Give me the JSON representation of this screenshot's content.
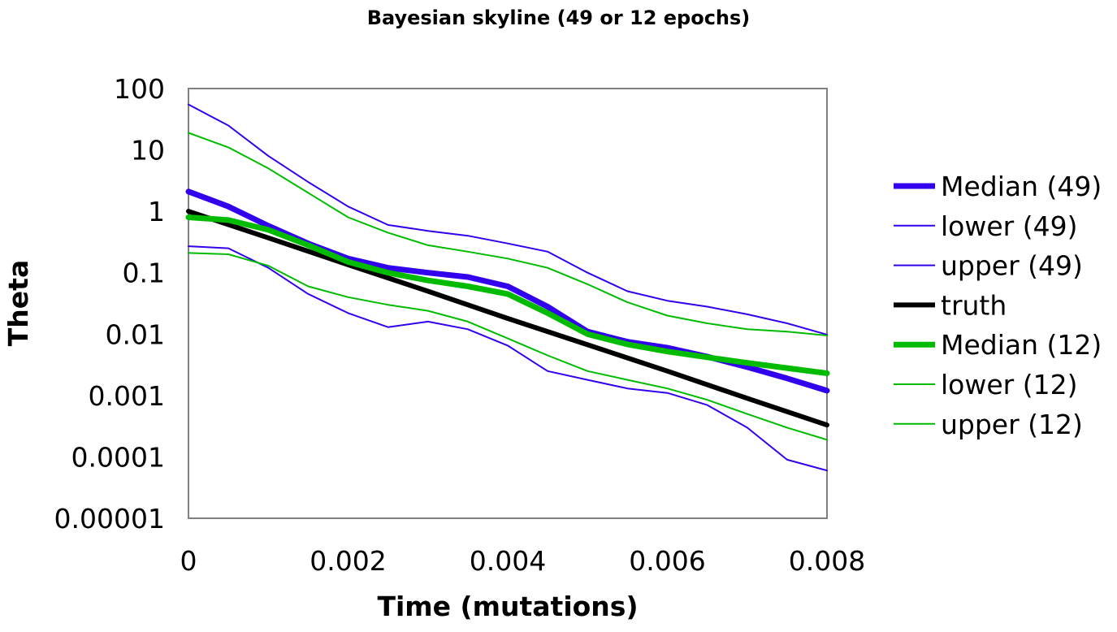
{
  "chart_data": {
    "type": "line",
    "title": "Bayesian skyline (49 or 12 epochs)",
    "xlabel": "Time (mutations)",
    "ylabel": "Theta",
    "xlim": [
      0,
      0.008
    ],
    "ylim": [
      1e-05,
      100
    ],
    "y_scale": "log",
    "grid": false,
    "legend_position": "right",
    "x_ticks": [
      0,
      0.002,
      0.004,
      0.006,
      0.008
    ],
    "x_tick_labels": [
      "0",
      "0.002",
      "0.004",
      "0.006",
      "0.008"
    ],
    "y_ticks": [
      1e-05,
      0.0001,
      0.001,
      0.01,
      0.1,
      1,
      10,
      100
    ],
    "y_tick_labels": [
      "0.00001",
      "0.0001",
      "0.001",
      "0.01",
      "0.1",
      "1",
      "10",
      "100"
    ],
    "series": [
      {
        "name": "Median (49)",
        "color": "#3300ee",
        "width": 7,
        "x": [
          0,
          0.0005,
          0.001,
          0.0015,
          0.002,
          0.0025,
          0.003,
          0.0035,
          0.004,
          0.0045,
          0.005,
          0.0055,
          0.006,
          0.0065,
          0.007,
          0.0075,
          0.008
        ],
        "y": [
          2.1,
          1.2,
          0.58,
          0.3,
          0.17,
          0.12,
          0.1,
          0.085,
          0.06,
          0.028,
          0.011,
          0.0075,
          0.006,
          0.0043,
          0.0029,
          0.0019,
          0.0012
        ]
      },
      {
        "name": "lower (49)",
        "color": "#3300ee",
        "width": 2,
        "x": [
          0,
          0.0005,
          0.001,
          0.0015,
          0.002,
          0.0025,
          0.003,
          0.0035,
          0.004,
          0.0045,
          0.005,
          0.0055,
          0.006,
          0.0065,
          0.007,
          0.0075,
          0.008
        ],
        "y": [
          0.27,
          0.25,
          0.12,
          0.045,
          0.022,
          0.013,
          0.016,
          0.012,
          0.0065,
          0.0025,
          0.0018,
          0.0013,
          0.0011,
          0.0007,
          0.0003,
          9e-05,
          6e-05
        ]
      },
      {
        "name": "upper (49)",
        "color": "#3300ee",
        "width": 2,
        "x": [
          0,
          0.0005,
          0.001,
          0.0015,
          0.002,
          0.0025,
          0.003,
          0.0035,
          0.004,
          0.0045,
          0.005,
          0.0055,
          0.006,
          0.0065,
          0.007,
          0.0075,
          0.008
        ],
        "y": [
          55,
          25,
          8,
          3,
          1.2,
          0.6,
          0.48,
          0.4,
          0.3,
          0.22,
          0.1,
          0.05,
          0.035,
          0.028,
          0.021,
          0.015,
          0.0098
        ]
      },
      {
        "name": "truth",
        "color": "#000000",
        "width": 6,
        "x": [
          0,
          0.001,
          0.002,
          0.003,
          0.004,
          0.005,
          0.006,
          0.007,
          0.008
        ],
        "y": [
          1.0,
          0.37,
          0.135,
          0.05,
          0.018,
          0.0067,
          0.0025,
          0.0009,
          0.00033
        ]
      },
      {
        "name": "Median (12)",
        "color": "#00bb00",
        "width": 7,
        "x": [
          0,
          0.0005,
          0.001,
          0.0015,
          0.002,
          0.0025,
          0.003,
          0.0035,
          0.004,
          0.0045,
          0.005,
          0.0055,
          0.006,
          0.0065,
          0.007,
          0.0075,
          0.008
        ],
        "y": [
          0.8,
          0.72,
          0.5,
          0.28,
          0.15,
          0.1,
          0.075,
          0.06,
          0.045,
          0.022,
          0.01,
          0.0068,
          0.0052,
          0.0042,
          0.0034,
          0.0028,
          0.0023
        ]
      },
      {
        "name": "lower (12)",
        "color": "#00bb00",
        "width": 2,
        "x": [
          0,
          0.0005,
          0.001,
          0.0015,
          0.002,
          0.0025,
          0.003,
          0.0035,
          0.004,
          0.0045,
          0.005,
          0.0055,
          0.006,
          0.0065,
          0.007,
          0.0075,
          0.008
        ],
        "y": [
          0.21,
          0.2,
          0.13,
          0.06,
          0.04,
          0.03,
          0.024,
          0.016,
          0.0085,
          0.0045,
          0.0025,
          0.0018,
          0.0013,
          0.00085,
          0.0005,
          0.0003,
          0.00019
        ]
      },
      {
        "name": "upper (12)",
        "color": "#00bb00",
        "width": 2,
        "x": [
          0,
          0.0005,
          0.001,
          0.0015,
          0.002,
          0.0025,
          0.003,
          0.0035,
          0.004,
          0.0045,
          0.005,
          0.0055,
          0.006,
          0.0065,
          0.007,
          0.0075,
          0.008
        ],
        "y": [
          19,
          11,
          5,
          2,
          0.8,
          0.45,
          0.28,
          0.22,
          0.17,
          0.12,
          0.065,
          0.033,
          0.02,
          0.015,
          0.012,
          0.011,
          0.0095
        ]
      }
    ]
  }
}
